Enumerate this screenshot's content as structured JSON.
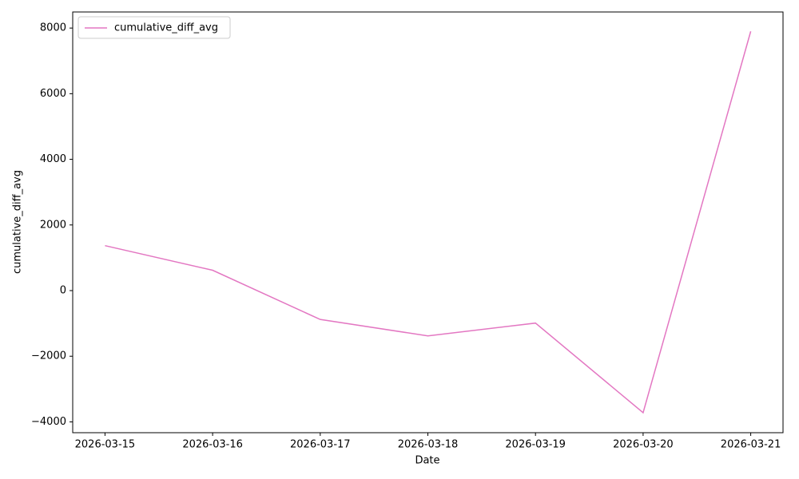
{
  "chart_data": {
    "type": "line",
    "x_label": "Date",
    "y_label": "cumulative_diff_avg",
    "categories": [
      "2026-03-15",
      "2026-03-16",
      "2026-03-17",
      "2026-03-18",
      "2026-03-19",
      "2026-03-20",
      "2026-03-21"
    ],
    "series": [
      {
        "name": "cumulative_diff_avg",
        "color": "#e377c2",
        "values": [
          1370,
          620,
          -880,
          -1380,
          -990,
          -3720,
          7900
        ]
      }
    ],
    "ylim": [
      -4330,
      8490
    ],
    "yticks": [
      {
        "value": -4000,
        "label": "−4000"
      },
      {
        "value": -2000,
        "label": "−2000"
      },
      0,
      2000,
      4000,
      6000,
      8000
    ],
    "legend": "upper left",
    "grid": false
  }
}
